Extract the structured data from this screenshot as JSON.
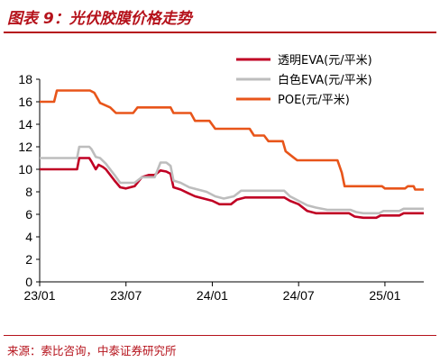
{
  "header": {
    "title": "图表 9：光伏胶膜价格走势"
  },
  "footer": {
    "source": "来源：索比咨询，中泰证券研究所"
  },
  "chart_data": {
    "type": "line",
    "xlabel": "",
    "ylabel": "",
    "ylim": [
      0,
      18
    ],
    "yticks": [
      0,
      2,
      4,
      6,
      8,
      10,
      12,
      14,
      16,
      18
    ],
    "xlim": [
      0,
      26.7
    ],
    "xticks": [
      {
        "label": "23/01",
        "value": 0
      },
      {
        "label": "23/07",
        "value": 6
      },
      {
        "label": "24/01",
        "value": 12
      },
      {
        "label": "24/07",
        "value": 18
      },
      {
        "label": "25/01",
        "value": 24
      }
    ],
    "legend_position": "top-right",
    "grid": false,
    "series": [
      {
        "name": "透明EVA(元/平米)",
        "color": "#c00024",
        "points": [
          [
            0,
            10
          ],
          [
            2.6,
            10
          ],
          [
            2.75,
            11
          ],
          [
            3.45,
            11
          ],
          [
            3.6,
            10.7
          ],
          [
            3.9,
            10
          ],
          [
            4.1,
            10.4
          ],
          [
            4.4,
            10.2
          ],
          [
            4.6,
            10
          ],
          [
            5.2,
            9
          ],
          [
            5.6,
            8.4
          ],
          [
            6.0,
            8.3
          ],
          [
            6.6,
            8.5
          ],
          [
            7.1,
            9.3
          ],
          [
            7.6,
            9.5
          ],
          [
            8.0,
            9.5
          ],
          [
            8.4,
            9.9
          ],
          [
            8.8,
            9.8
          ],
          [
            9.1,
            9.6
          ],
          [
            9.3,
            8.4
          ],
          [
            9.8,
            8.2
          ],
          [
            10.3,
            7.9
          ],
          [
            10.8,
            7.6
          ],
          [
            11.4,
            7.4
          ],
          [
            12.0,
            7.2
          ],
          [
            12.5,
            6.9
          ],
          [
            13.3,
            6.9
          ],
          [
            13.7,
            7.3
          ],
          [
            14.3,
            7.5
          ],
          [
            17.0,
            7.5
          ],
          [
            17.4,
            7.2
          ],
          [
            18.0,
            6.9
          ],
          [
            18.6,
            6.3
          ],
          [
            19.2,
            6.1
          ],
          [
            21.5,
            6.1
          ],
          [
            21.9,
            5.8
          ],
          [
            22.5,
            5.7
          ],
          [
            23.4,
            5.7
          ],
          [
            23.7,
            5.9
          ],
          [
            25.0,
            5.9
          ],
          [
            25.3,
            6.1
          ],
          [
            26.7,
            6.1
          ]
        ]
      },
      {
        "name": "白色EVA(元/平米)",
        "color": "#bdbdbd",
        "points": [
          [
            0,
            11
          ],
          [
            2.6,
            11
          ],
          [
            2.75,
            12
          ],
          [
            3.45,
            12
          ],
          [
            3.6,
            11.8
          ],
          [
            3.9,
            11.1
          ],
          [
            4.2,
            11
          ],
          [
            4.6,
            10.5
          ],
          [
            5.2,
            9.5
          ],
          [
            5.6,
            8.8
          ],
          [
            6.6,
            8.8
          ],
          [
            7.1,
            9.3
          ],
          [
            8.0,
            9.3
          ],
          [
            8.4,
            10.6
          ],
          [
            8.8,
            10.6
          ],
          [
            9.1,
            10.3
          ],
          [
            9.3,
            9.0
          ],
          [
            9.8,
            8.8
          ],
          [
            10.4,
            8.4
          ],
          [
            11.0,
            8.2
          ],
          [
            11.6,
            8.0
          ],
          [
            12.2,
            7.6
          ],
          [
            12.8,
            7.4
          ],
          [
            13.5,
            7.6
          ],
          [
            14.0,
            8.1
          ],
          [
            17.0,
            8.1
          ],
          [
            17.4,
            7.6
          ],
          [
            18.0,
            7.2
          ],
          [
            18.6,
            6.8
          ],
          [
            19.2,
            6.6
          ],
          [
            20.0,
            6.4
          ],
          [
            21.6,
            6.4
          ],
          [
            22.0,
            6.2
          ],
          [
            22.5,
            6.1
          ],
          [
            23.6,
            6.1
          ],
          [
            23.9,
            6.3
          ],
          [
            25.0,
            6.3
          ],
          [
            25.3,
            6.5
          ],
          [
            26.7,
            6.5
          ]
        ]
      },
      {
        "name": "POE(元/平米)",
        "color": "#e8551a",
        "points": [
          [
            0,
            16
          ],
          [
            1.0,
            16
          ],
          [
            1.2,
            17
          ],
          [
            3.5,
            17
          ],
          [
            3.8,
            16.8
          ],
          [
            4.2,
            15.9
          ],
          [
            4.9,
            15.5
          ],
          [
            5.3,
            15
          ],
          [
            6.5,
            15
          ],
          [
            6.8,
            15.5
          ],
          [
            9.1,
            15.5
          ],
          [
            9.3,
            15
          ],
          [
            10.5,
            15
          ],
          [
            10.8,
            14.3
          ],
          [
            11.8,
            14.3
          ],
          [
            12.2,
            13.6
          ],
          [
            14.6,
            13.6
          ],
          [
            14.9,
            13
          ],
          [
            15.6,
            13
          ],
          [
            15.9,
            12.5
          ],
          [
            16.9,
            12.5
          ],
          [
            17.1,
            11.6
          ],
          [
            17.6,
            11.1
          ],
          [
            17.9,
            10.8
          ],
          [
            20.7,
            10.8
          ],
          [
            21.0,
            9.7
          ],
          [
            21.2,
            8.5
          ],
          [
            23.8,
            8.5
          ],
          [
            24.0,
            8.3
          ],
          [
            25.4,
            8.3
          ],
          [
            25.6,
            8.5
          ],
          [
            26.0,
            8.5
          ],
          [
            26.1,
            8.2
          ],
          [
            26.7,
            8.2
          ]
        ]
      }
    ]
  }
}
